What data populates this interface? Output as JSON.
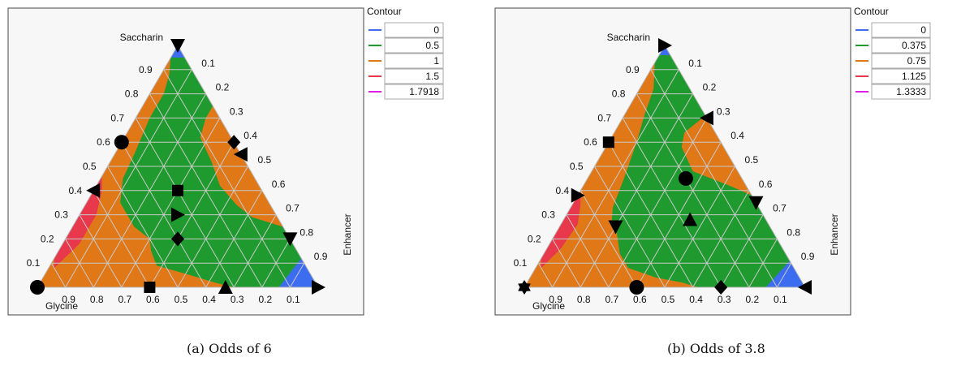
{
  "chart_data": [
    {
      "type": "ternary-contour",
      "caption": "(a) Odds of 6",
      "axes": {
        "top": "Saccharin",
        "left": "Glycine",
        "right": "Enhancer"
      },
      "ticks": [
        "0.1",
        "0.2",
        "0.3",
        "0.4",
        "0.5",
        "0.6",
        "0.7",
        "0.8",
        "0.9"
      ],
      "legend": {
        "title": "Contour",
        "entries": [
          {
            "label": "0",
            "color": "#3c6cf0"
          },
          {
            "label": "0.5",
            "color": "#1e9a2e"
          },
          {
            "label": "1",
            "color": "#e07818"
          },
          {
            "label": "1.5",
            "color": "#e8384c"
          },
          {
            "label": "1.7918",
            "color": "#e020e8"
          }
        ]
      },
      "points": [
        {
          "marker": "triangle-down",
          "saccharin": 1.0,
          "enhancer": 0.0
        },
        {
          "marker": "circle",
          "saccharin": 0.6,
          "enhancer": 0.0
        },
        {
          "marker": "diamond",
          "saccharin": 0.6,
          "enhancer": 0.4
        },
        {
          "marker": "triangle-left",
          "saccharin": 0.55,
          "enhancer": 0.45
        },
        {
          "marker": "square",
          "saccharin": 0.4,
          "enhancer": 0.3
        },
        {
          "marker": "triangle-left",
          "saccharin": 0.4,
          "enhancer": 0.0
        },
        {
          "marker": "triangle-right",
          "saccharin": 0.3,
          "enhancer": 0.35
        },
        {
          "marker": "diamond",
          "saccharin": 0.2,
          "enhancer": 0.4
        },
        {
          "marker": "triangle-down",
          "saccharin": 0.2,
          "enhancer": 0.8
        },
        {
          "marker": "circle",
          "saccharin": 0.0,
          "enhancer": 0.0
        },
        {
          "marker": "square",
          "saccharin": 0.0,
          "enhancer": 0.4
        },
        {
          "marker": "triangle-up",
          "saccharin": 0.0,
          "enhancer": 0.67
        },
        {
          "marker": "triangle-right",
          "saccharin": 0.0,
          "enhancer": 1.0
        }
      ]
    },
    {
      "type": "ternary-contour",
      "caption": "(b) Odds of 3.8",
      "axes": {
        "top": "Saccharin",
        "left": "Glycine",
        "right": "Enhancer"
      },
      "ticks": [
        "0.1",
        "0.2",
        "0.3",
        "0.4",
        "0.5",
        "0.6",
        "0.7",
        "0.8",
        "0.9"
      ],
      "legend": {
        "title": "Contour",
        "entries": [
          {
            "label": "0",
            "color": "#3c6cf0"
          },
          {
            "label": "0.375",
            "color": "#1e9a2e"
          },
          {
            "label": "0.75",
            "color": "#e07818"
          },
          {
            "label": "1.125",
            "color": "#e8384c"
          },
          {
            "label": "1.3333",
            "color": "#e020e8"
          }
        ]
      },
      "points": [
        {
          "marker": "triangle-right",
          "saccharin": 1.0,
          "enhancer": 0.0
        },
        {
          "marker": "triangle-left",
          "saccharin": 0.7,
          "enhancer": 0.3
        },
        {
          "marker": "square",
          "saccharin": 0.6,
          "enhancer": 0.0
        },
        {
          "marker": "circle",
          "saccharin": 0.45,
          "enhancer": 0.35
        },
        {
          "marker": "triangle-right",
          "saccharin": 0.38,
          "enhancer": 0.0
        },
        {
          "marker": "triangle-down",
          "saccharin": 0.35,
          "enhancer": 0.65
        },
        {
          "marker": "triangle-down",
          "saccharin": 0.25,
          "enhancer": 0.2
        },
        {
          "marker": "triangle-up",
          "saccharin": 0.28,
          "enhancer": 0.45
        },
        {
          "marker": "star",
          "saccharin": 0.0,
          "enhancer": 0.0
        },
        {
          "marker": "circle",
          "saccharin": 0.0,
          "enhancer": 0.4
        },
        {
          "marker": "diamond",
          "saccharin": 0.0,
          "enhancer": 0.7
        },
        {
          "marker": "triangle-left",
          "saccharin": 0.0,
          "enhancer": 1.0
        }
      ]
    }
  ]
}
